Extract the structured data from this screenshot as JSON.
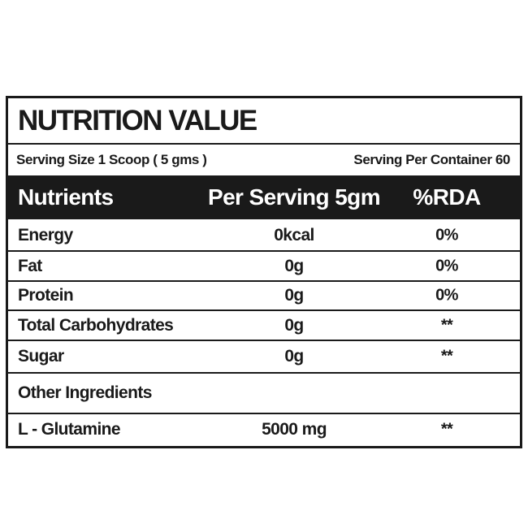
{
  "title": "NUTRITION VALUE",
  "serving": {
    "size": "Serving Size 1 Scoop ( 5 gms )",
    "per_container": "Serving Per Container 60"
  },
  "table": {
    "header": [
      "Nutrients",
      "Per Serving 5gm",
      "%RDA"
    ],
    "rows": [
      [
        "Energy",
        "0kcal",
        "0%"
      ],
      [
        "Fat",
        "0g",
        "0%"
      ],
      [
        "Protein",
        "0g",
        "0%"
      ],
      [
        "Total Carbohydrates",
        "0g",
        "**"
      ],
      [
        "Sugar",
        "0g",
        "**"
      ]
    ]
  },
  "other": {
    "title": "Other Ingredients",
    "rows": [
      [
        "L - Glutamine",
        "5000 mg",
        "**"
      ]
    ]
  }
}
